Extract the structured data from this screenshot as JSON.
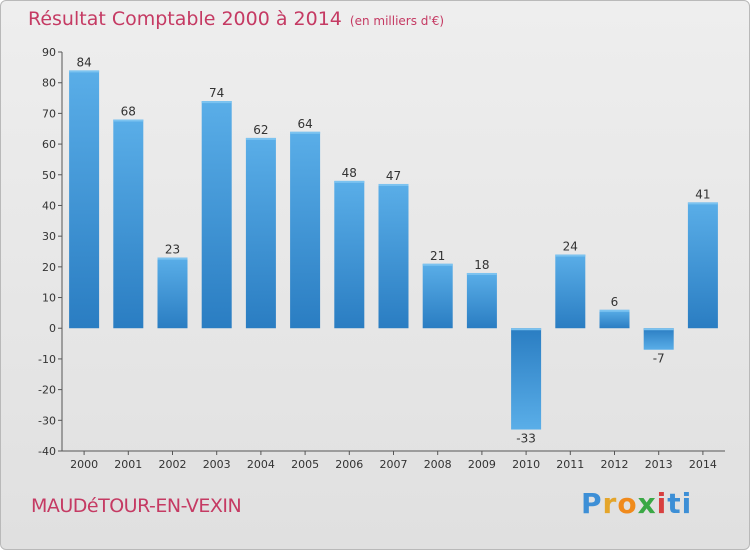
{
  "chart_data": {
    "type": "bar",
    "title": "Résultat Comptable 2000 à 2014",
    "subtitle": "(en milliers d'€)",
    "categories": [
      "2000",
      "2001",
      "2002",
      "2003",
      "2004",
      "2005",
      "2006",
      "2007",
      "2008",
      "2009",
      "2010",
      "2011",
      "2012",
      "2013",
      "2014"
    ],
    "values": [
      84,
      68,
      23,
      74,
      62,
      64,
      48,
      47,
      21,
      18,
      -33,
      24,
      6,
      -7,
      41
    ],
    "ylim": [
      -40,
      90
    ],
    "yticks": [
      90,
      80,
      70,
      60,
      50,
      40,
      30,
      20,
      10,
      0,
      -10,
      -20,
      -30,
      -40
    ],
    "xlabel": "",
    "ylabel": "",
    "grid": false,
    "bar_color_light": "#5aaee8",
    "bar_color_dark": "#2a7dc2"
  },
  "footer": {
    "commune": "MAUDéTOUR-EN-VEXIN"
  },
  "logo": {
    "text": "Proxiti",
    "parts": [
      "P",
      "r",
      "o",
      "x",
      "i",
      "ti"
    ]
  },
  "colors": {
    "title": "#c53a63",
    "axis": "#333333"
  }
}
